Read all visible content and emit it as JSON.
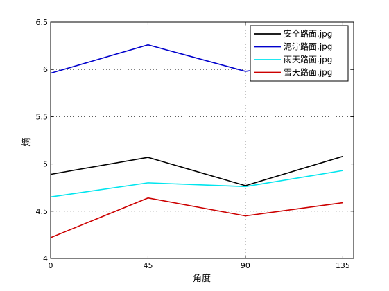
{
  "chart_data": {
    "type": "line",
    "title": "",
    "xlabel": "角度",
    "ylabel": "熵",
    "x": [
      0,
      45,
      90,
      135
    ],
    "xlim": [
      0,
      140
    ],
    "ylim": [
      4,
      6.5
    ],
    "x_ticks": [
      0,
      45,
      90,
      135
    ],
    "y_ticks": [
      4,
      4.5,
      5,
      5.5,
      6,
      6.5
    ],
    "x_tick_labels": [
      "0",
      "45",
      "90",
      "135"
    ],
    "y_tick_labels": [
      "4",
      "4.5",
      "5",
      "5.5",
      "6",
      "6.5"
    ],
    "grid": true,
    "legend_position": "top-right",
    "series": [
      {
        "name": "安全路面.jpg",
        "color": "#000000",
        "values": [
          4.89,
          5.07,
          4.77,
          5.08
        ]
      },
      {
        "name": "泥泞路面.jpg",
        "color": "#0000cc",
        "values": [
          5.96,
          6.26,
          5.98,
          6.12
        ]
      },
      {
        "name": "雨天路面.jpg",
        "color": "#00e5ee",
        "values": [
          4.65,
          4.8,
          4.76,
          4.93
        ]
      },
      {
        "name": "雪天路面.jpg",
        "color": "#cc0000",
        "values": [
          4.22,
          4.64,
          4.45,
          4.59
        ]
      }
    ]
  }
}
